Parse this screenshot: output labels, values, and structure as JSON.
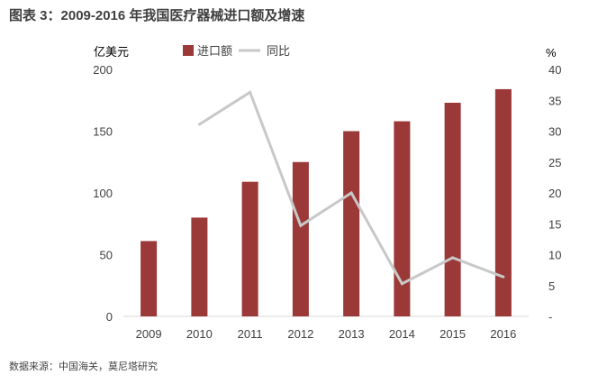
{
  "figure": {
    "title": "图表 3：2009-2016 年我国医疗器械进口额及增速",
    "source": "数据来源：中国海关，莫尼塔研究"
  },
  "chart_data": {
    "type": "bar",
    "categories": [
      "2009",
      "2010",
      "2011",
      "2012",
      "2013",
      "2014",
      "2015",
      "2016"
    ],
    "series": [
      {
        "name": "进口额",
        "type": "bar",
        "axis": "left",
        "color": "#9b3838",
        "values": [
          61,
          80,
          109,
          125,
          150,
          158,
          173,
          184
        ]
      },
      {
        "name": "同比",
        "type": "line",
        "axis": "right",
        "color": "#c8c8c8",
        "values": [
          null,
          31.1,
          36.3,
          14.7,
          20.0,
          5.3,
          9.5,
          6.4
        ]
      }
    ],
    "y_left": {
      "label": "亿美元",
      "min": 0,
      "max": 200,
      "ticks": [
        "0",
        "50",
        "100",
        "150",
        "200"
      ]
    },
    "y_right": {
      "label": "%",
      "min": 0,
      "max": 40,
      "ticks": [
        "-",
        "5",
        "10",
        "15",
        "20",
        "25",
        "30",
        "35",
        "40"
      ]
    },
    "grid": false,
    "legend_position": "top-center"
  }
}
